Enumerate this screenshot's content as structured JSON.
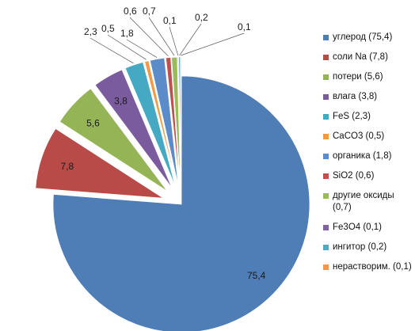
{
  "chart_data": {
    "type": "pie",
    "exploded": true,
    "legend_position": "right",
    "slices": [
      {
        "name": "углерод (75,4)",
        "value": 75.4,
        "label": "75,4",
        "color": "#4f7db6"
      },
      {
        "name": "соли Na (7,8)",
        "value": 7.8,
        "label": "7,8",
        "color": "#b84a47"
      },
      {
        "name": "потери (5,6)",
        "value": 5.6,
        "label": "5,6",
        "color": "#95b456"
      },
      {
        "name": "влага (3,8)",
        "value": 3.8,
        "label": "3,8",
        "color": "#7a5c9e"
      },
      {
        "name": "FeS (2,3)",
        "value": 2.3,
        "label": "2,3",
        "color": "#45a9c3"
      },
      {
        "name": "CaCO3 (0,5)",
        "value": 0.5,
        "label": "0,5",
        "color": "#f19a45"
      },
      {
        "name": "органика (1,8)",
        "value": 1.8,
        "label": "1,8",
        "color": "#5b8bc8"
      },
      {
        "name": "SiO2 (0,6)",
        "value": 0.6,
        "label": "0,6",
        "color": "#c0504d"
      },
      {
        "name": "другие оксиды (0,7)",
        "value": 0.7,
        "label": "0,7",
        "color": "#9bbb59"
      },
      {
        "name": "Fe3O4 (0,1)",
        "value": 0.1,
        "label": "0,1",
        "color": "#8064a2"
      },
      {
        "name": "ингитор (0,2)",
        "value": 0.2,
        "label": "0,2",
        "color": "#4bacc6"
      },
      {
        "name": "нерастворим. (0,1)",
        "value": 0.1,
        "label": "0,1",
        "color": "#f79646"
      }
    ]
  }
}
